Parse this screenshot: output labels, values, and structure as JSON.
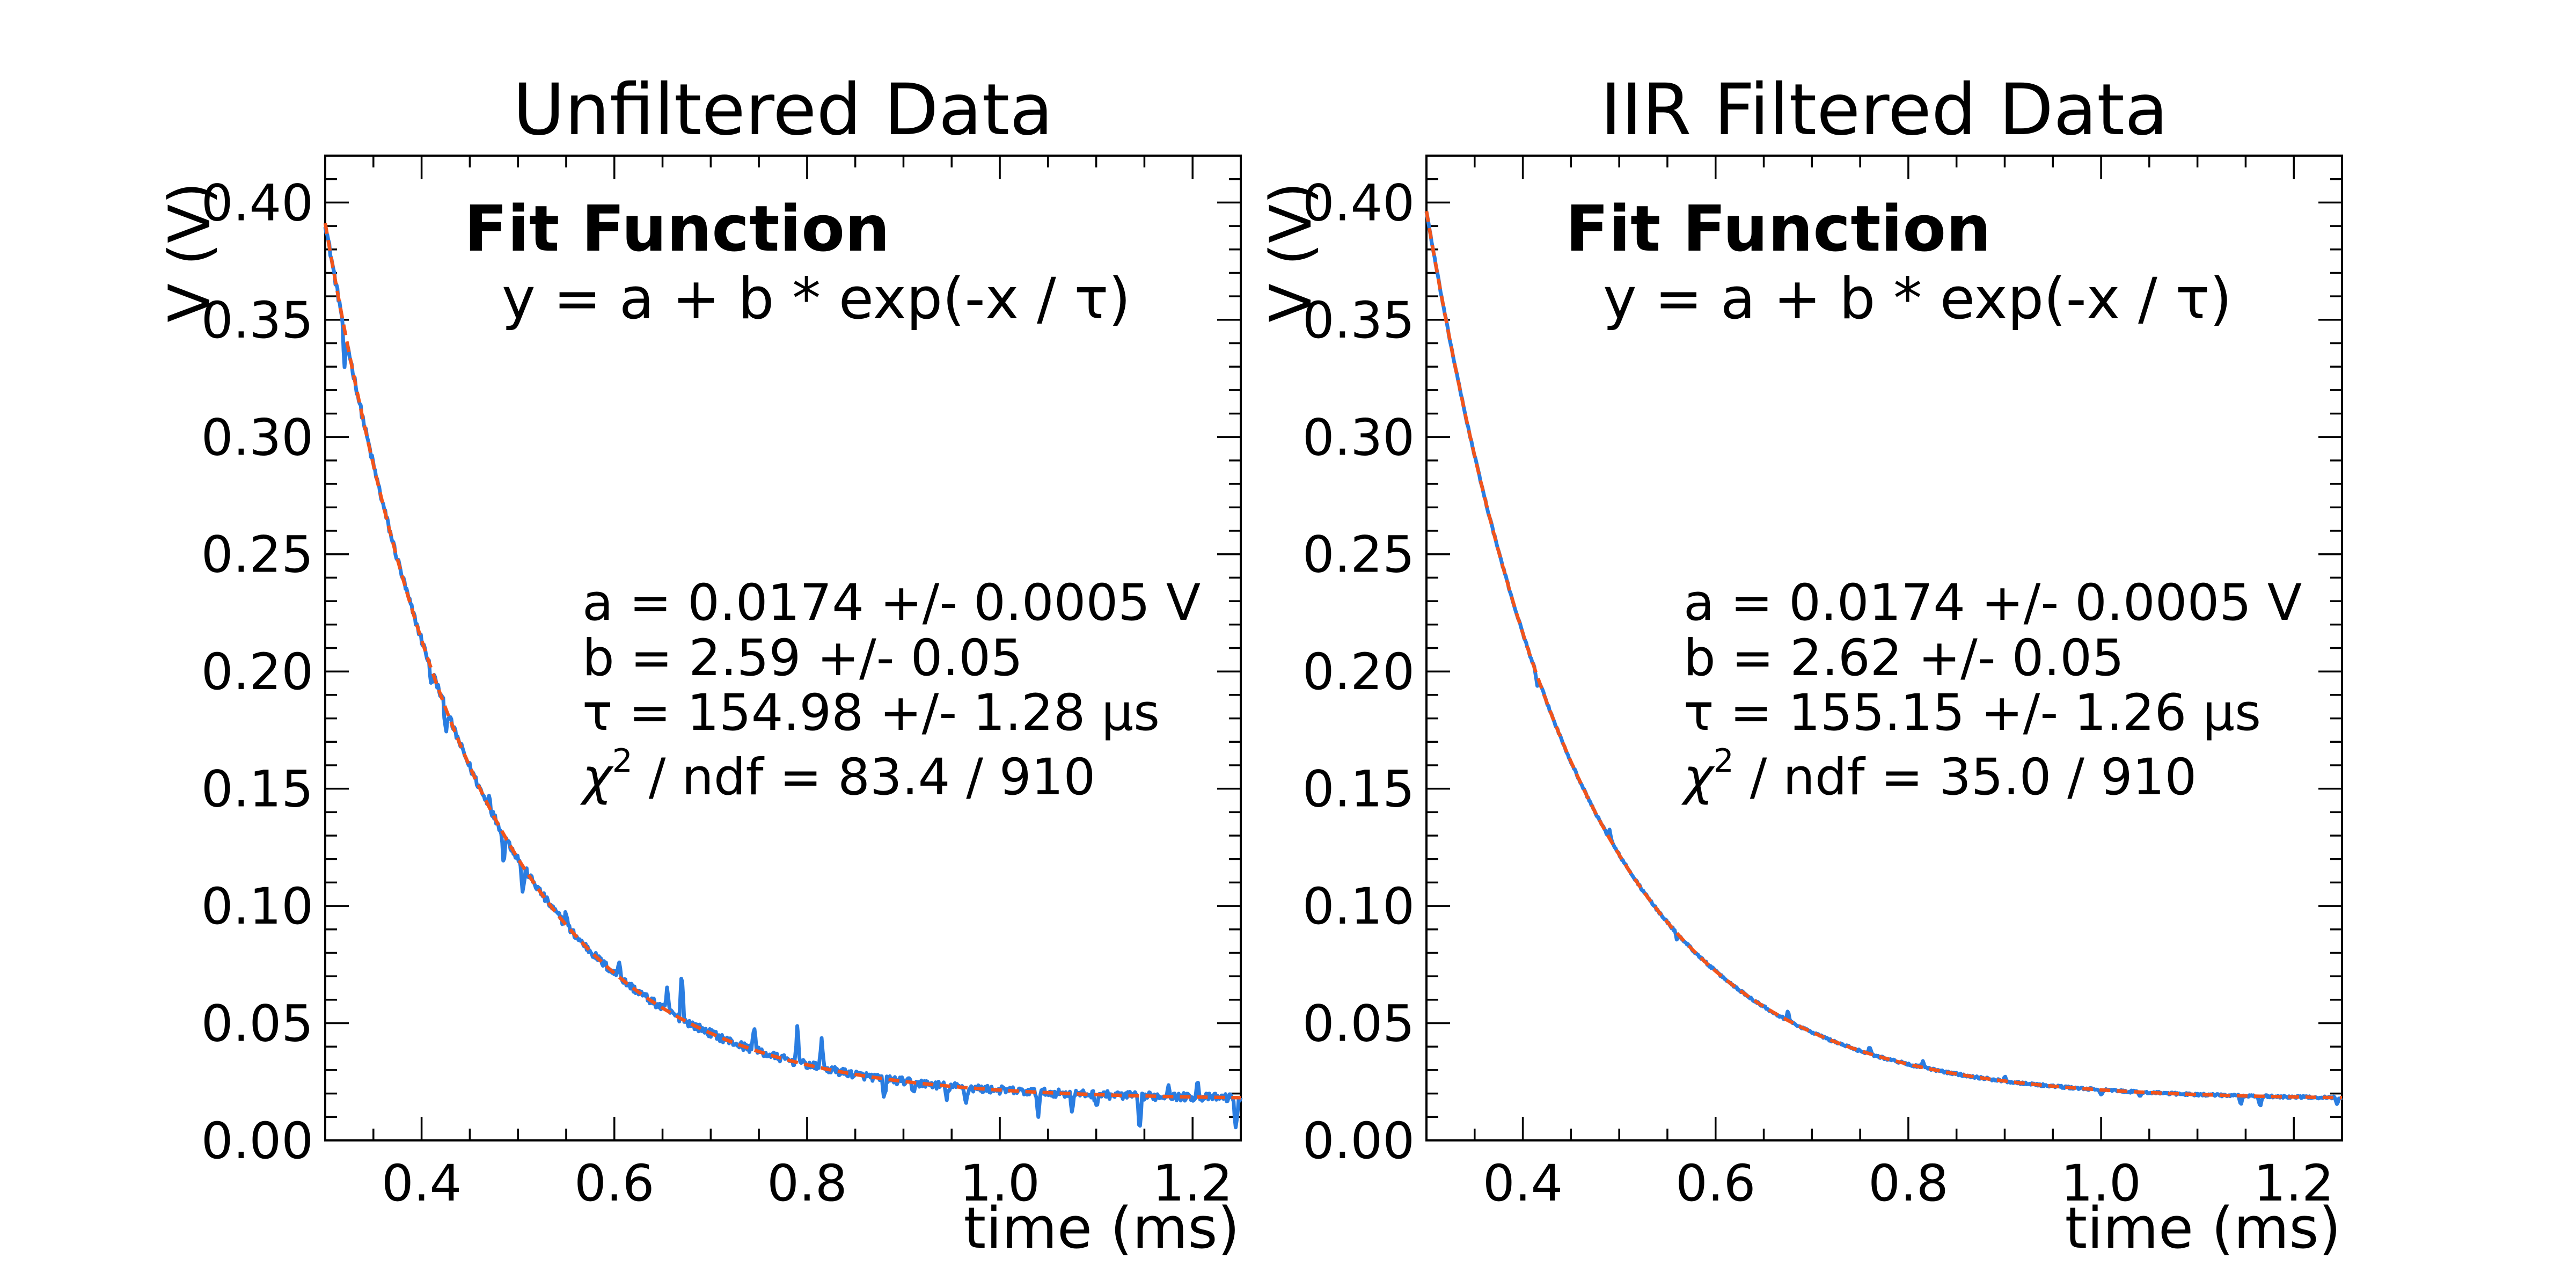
{
  "chart_data": [
    {
      "type": "line",
      "title": "Unfiltered Data",
      "xlabel": "time (ms)",
      "ylabel": "V (V)",
      "xlim": [
        0.3,
        1.25
      ],
      "ylim": [
        0.0,
        0.42
      ],
      "x_ticks": [
        "0.4",
        "0.6",
        "0.8",
        "1.0",
        "1.2"
      ],
      "y_ticks": [
        "0.00",
        "0.05",
        "0.10",
        "0.15",
        "0.20",
        "0.25",
        "0.30",
        "0.35",
        "0.40"
      ],
      "grid": false,
      "fit_heading": "Fit Function",
      "fit_formula": "y = a + b * exp(-x / τ)",
      "params": {
        "a": "a = 0.0174 +/- 0.0005  V",
        "b": "b = 2.59 +/- 0.05",
        "tau": "τ = 154.98 +/- 1.28  μs",
        "chi_prefix": "χ",
        "chi_sup": "2",
        "chi_rest": " / ndf = 83.4 / 910"
      },
      "fit": {
        "a": 0.0174,
        "b": 2.59,
        "tau_ms": 0.15498
      },
      "noise_spikes": [
        [
          0.32,
          -0.018
        ],
        [
          0.41,
          -0.008
        ],
        [
          0.425,
          -0.01
        ],
        [
          0.47,
          0.006
        ],
        [
          0.485,
          -0.012
        ],
        [
          0.505,
          -0.013
        ],
        [
          0.55,
          0.006
        ],
        [
          0.605,
          0.008
        ],
        [
          0.655,
          0.01
        ],
        [
          0.67,
          0.022
        ],
        [
          0.745,
          0.012
        ],
        [
          0.79,
          0.017
        ],
        [
          0.815,
          0.014
        ],
        [
          0.88,
          -0.01
        ],
        [
          0.91,
          -0.005
        ],
        [
          0.945,
          -0.006
        ],
        [
          0.965,
          -0.007
        ],
        [
          1.04,
          -0.01
        ],
        [
          1.075,
          -0.007
        ],
        [
          1.1,
          -0.005
        ],
        [
          1.145,
          -0.018
        ],
        [
          1.175,
          0.006
        ],
        [
          1.205,
          0.007
        ],
        [
          1.245,
          -0.016
        ]
      ],
      "series": [
        {
          "label": "data",
          "color": "#2a7de1",
          "style": "solid",
          "noise": 0.0017
        },
        {
          "label": "fit",
          "color": "#f2541b",
          "style": "dashed"
        }
      ]
    },
    {
      "type": "line",
      "title": "IIR Filtered Data",
      "xlabel": "time (ms)",
      "ylabel": "V (V)",
      "xlim": [
        0.3,
        1.25
      ],
      "ylim": [
        0.0,
        0.42
      ],
      "x_ticks": [
        "0.4",
        "0.6",
        "0.8",
        "1.0",
        "1.2"
      ],
      "y_ticks": [
        "0.00",
        "0.05",
        "0.10",
        "0.15",
        "0.20",
        "0.25",
        "0.30",
        "0.35",
        "0.40"
      ],
      "grid": false,
      "fit_heading": "Fit Function",
      "fit_formula": "y = a + b * exp(-x / τ)",
      "params": {
        "a": "a = 0.0174 +/- 0.0005  V",
        "b": "b = 2.62 +/- 0.05",
        "tau": "τ = 155.15 +/- 1.26  μs",
        "chi_prefix": "χ",
        "chi_sup": "2",
        "chi_rest": " / ndf = 35.0 / 910"
      },
      "fit": {
        "a": 0.0174,
        "b": 2.62,
        "tau_ms": 0.15515
      },
      "noise_spikes": [
        [
          0.415,
          -0.004
        ],
        [
          0.49,
          0.004
        ],
        [
          0.56,
          -0.003
        ],
        [
          0.675,
          0.004
        ],
        [
          0.76,
          0.003
        ],
        [
          0.815,
          0.003
        ],
        [
          0.9,
          0.002
        ],
        [
          1.0,
          -0.002
        ],
        [
          1.04,
          -0.002
        ],
        [
          1.145,
          -0.004
        ],
        [
          1.165,
          -0.005
        ],
        [
          1.245,
          -0.003
        ]
      ],
      "series": [
        {
          "label": "data",
          "color": "#2a7de1",
          "style": "solid",
          "noise": 0.0005
        },
        {
          "label": "fit",
          "color": "#f2541b",
          "style": "dashed"
        }
      ]
    }
  ]
}
